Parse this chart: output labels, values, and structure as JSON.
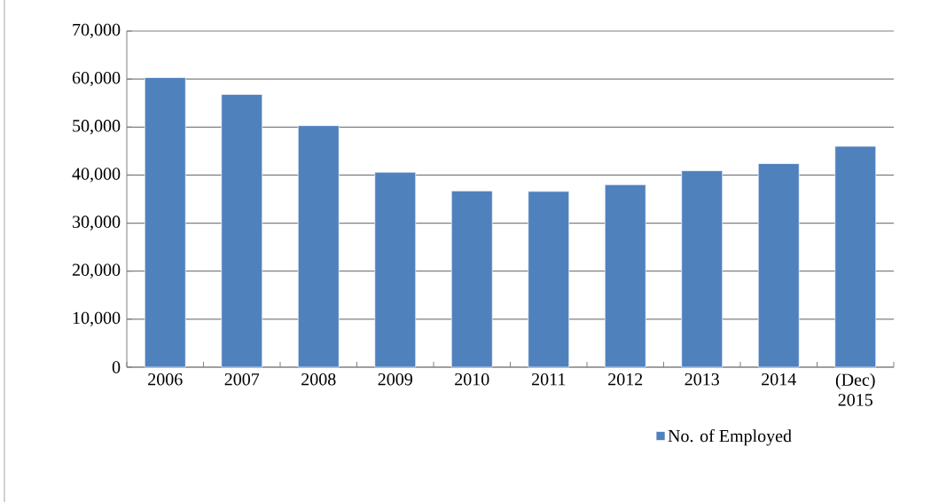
{
  "chart_data": {
    "type": "bar",
    "categories": [
      "2006",
      "2007",
      "2008",
      "2009",
      "2010",
      "2011",
      "2012",
      "2013",
      "2014",
      "(Dec) 2015"
    ],
    "series": [
      {
        "name": "No. of Employed",
        "color": "#4f81bd",
        "values": [
          60300,
          56800,
          50300,
          40600,
          36700,
          36600,
          38000,
          40900,
          42400,
          46000
        ]
      }
    ],
    "ylim": [
      0,
      70000
    ],
    "yticks": [
      {
        "value": 0,
        "label": "0"
      },
      {
        "value": 10000,
        "label": "10,000"
      },
      {
        "value": 20000,
        "label": "20,000"
      },
      {
        "value": 30000,
        "label": "30,000"
      },
      {
        "value": 40000,
        "label": "40,000"
      },
      {
        "value": 50000,
        "label": "50,000"
      },
      {
        "value": 60000,
        "label": "60,000"
      },
      {
        "value": 70000,
        "label": "70,000"
      }
    ],
    "grid": "y",
    "legend": "bottom"
  }
}
